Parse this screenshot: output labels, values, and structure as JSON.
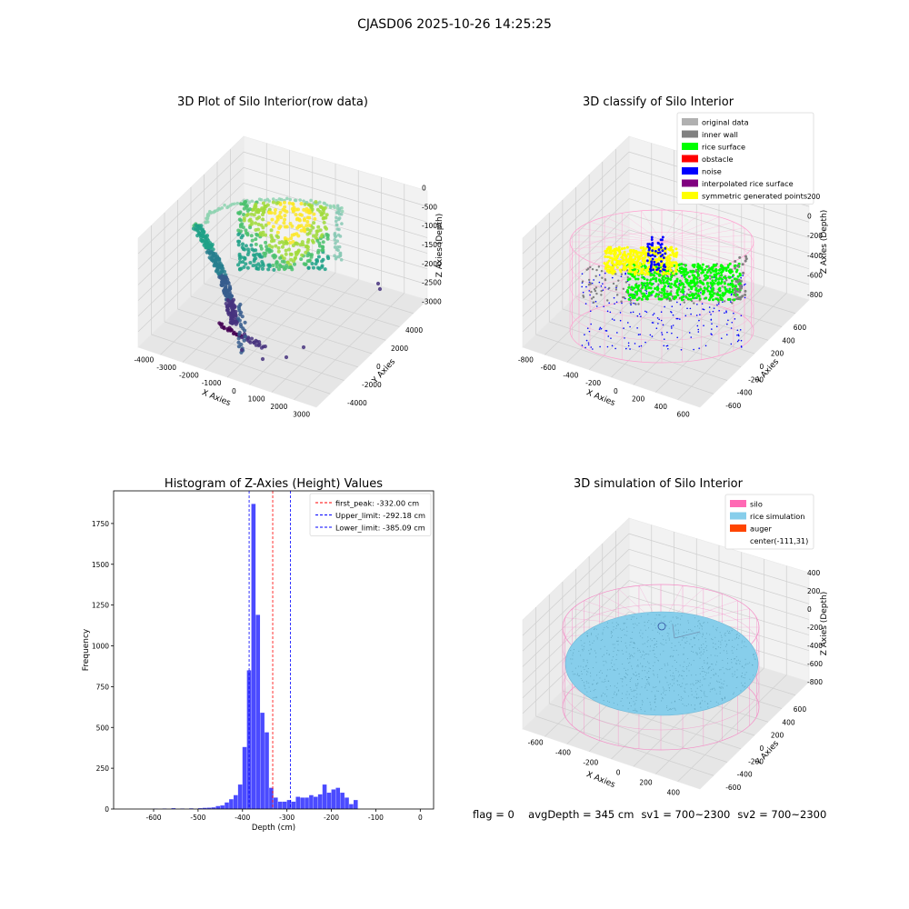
{
  "suptitle": "CJASD06 2025-10-26 14:25:25",
  "footer": {
    "flag": "flag = 0",
    "avg": "avgDepth = 345 cm",
    "sv1": "sv1 = 700~2300",
    "sv2": "sv2 = 700~2300"
  },
  "colors": {
    "original": "#b0b0b0",
    "inner_wall": "#808080",
    "rice_surface": "#00ff00",
    "obstacle": "#ff0000",
    "noise": "#0000ff",
    "interp": "#800080",
    "symmetric": "#ffff00",
    "silo": "#ff69b4",
    "rice_sim": "#87ceeb",
    "auger": "#ff4500",
    "hist_bar": "#4b4bff",
    "peak_line": "#ff0000",
    "limit_line": "#0000ff"
  },
  "chart_data": [
    {
      "type": "scatter",
      "projection": "3d",
      "title": "3D Plot of Silo Interior(row data)",
      "xlabel": "X Axies",
      "ylabel": "Y Axies",
      "zlabel": "Z Axies (Depth)",
      "xticks": [
        "-4000",
        "-3000",
        "-2000",
        "-1000",
        "0",
        "1000",
        "2000",
        "3000"
      ],
      "yticks": [
        "-4000",
        "-2000",
        "0",
        "2000",
        "4000"
      ],
      "zticks": [
        "-3000",
        "-2500",
        "-2000",
        "-1500",
        "-1000",
        "-500",
        "0"
      ],
      "colormap": "viridis"
    },
    {
      "type": "scatter",
      "projection": "3d",
      "title": "3D classify of Silo Interior",
      "xlabel": "X Axies",
      "ylabel": "Y Axies",
      "zlabel": "Z Axies (Depth)",
      "xticks": [
        "-800",
        "-600",
        "-400",
        "-200",
        "0",
        "200",
        "400",
        "600"
      ],
      "yticks": [
        "-600",
        "-400",
        "-200",
        "0",
        "200",
        "400",
        "600"
      ],
      "zticks": [
        "-800",
        "-600",
        "-400",
        "-200",
        "0",
        "200"
      ],
      "legend": [
        "original data",
        "inner wall",
        "rice surface",
        "obstacle",
        "noise",
        "interpolated rice surface",
        "symmetric generated points"
      ],
      "legend_position": "top-right"
    },
    {
      "type": "bar",
      "title": "Histogram of Z-Axies (Height) Values",
      "xlabel": "Depth (cm)",
      "ylabel": "Frequency",
      "xlim": [
        -690,
        30
      ],
      "ylim": [
        0,
        1950
      ],
      "xticks": [
        -600,
        -500,
        -400,
        -300,
        -200,
        -100,
        0
      ],
      "yticks": [
        0,
        250,
        500,
        750,
        1000,
        1250,
        1500,
        1750
      ],
      "bin_width": 10,
      "bins_start": [
        -600,
        -580,
        -560,
        -540,
        -520,
        -500,
        -490,
        -480,
        -470,
        -460,
        -450,
        -440,
        -430,
        -420,
        -410,
        -400,
        -390,
        -380,
        -370,
        -360,
        -350,
        -340,
        -330,
        -320,
        -310,
        -300,
        -290,
        -280,
        -270,
        -260,
        -250,
        -240,
        -230,
        -220,
        -210,
        -200,
        -190,
        -180,
        -170,
        -160,
        -150,
        -140,
        -130,
        -120,
        -110,
        -100,
        -90,
        -80,
        -70,
        -60,
        -50,
        -40,
        -30,
        -20,
        -10
      ],
      "counts": [
        2,
        3,
        5,
        3,
        4,
        5,
        7,
        8,
        10,
        18,
        22,
        40,
        60,
        85,
        150,
        380,
        850,
        1870,
        1190,
        590,
        470,
        130,
        70,
        45,
        45,
        55,
        45,
        75,
        70,
        70,
        85,
        75,
        90,
        150,
        100,
        120,
        130,
        100,
        70,
        30,
        55,
        0,
        0,
        0,
        0,
        0,
        0,
        0,
        0,
        0,
        0,
        0,
        0,
        0,
        0
      ],
      "vlines": [
        {
          "label": "first_peak: -332.00 cm",
          "value": -332.0,
          "color": "#ff0000"
        },
        {
          "label": "Upper_limit: -292.18 cm",
          "value": -292.18,
          "color": "#0000ff"
        },
        {
          "label": "Lower_limit: -385.09 cm",
          "value": -385.09,
          "color": "#0000ff"
        }
      ],
      "legend_position": "top-right"
    },
    {
      "type": "scatter",
      "projection": "3d",
      "title": "3D simulation of Silo Interior",
      "xlabel": "X Axies",
      "ylabel": "Y Axies",
      "zlabel": "Z Axies (Depth)",
      "xticks": [
        "-600",
        "-400",
        "-200",
        "0",
        "200",
        "400"
      ],
      "yticks": [
        "-600",
        "-400",
        "-200",
        "0",
        "200",
        "400",
        "600"
      ],
      "zticks": [
        "-800",
        "-600",
        "-400",
        "-200",
        "0",
        "200",
        "400"
      ],
      "legend": [
        "silo",
        "rice simulation",
        "auger",
        "center(-111,31)"
      ],
      "legend_position": "top-right"
    }
  ]
}
